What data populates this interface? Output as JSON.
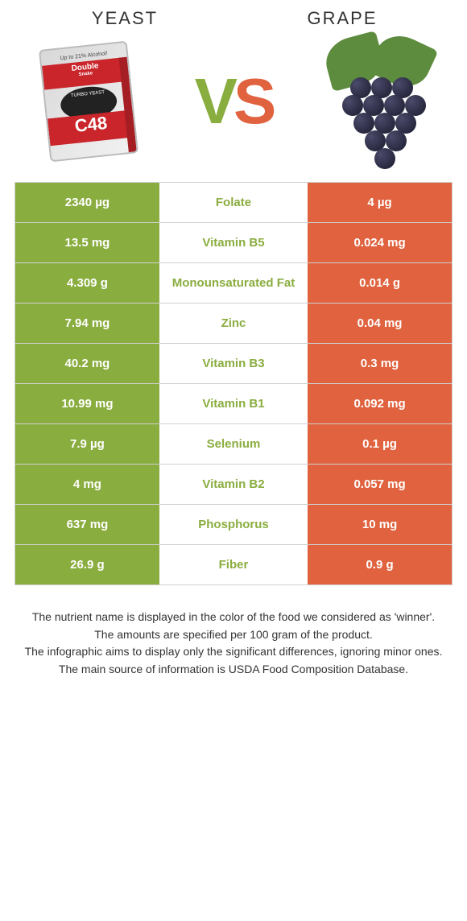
{
  "header": {
    "left_title": "YEAST",
    "right_title": "GRAPE",
    "vs_v": "V",
    "vs_s": "S"
  },
  "colors": {
    "left": "#8aad3f",
    "right": "#e0623e",
    "row_border": "#d0d0d0",
    "mid_bg": "#ffffff"
  },
  "yeast_packet": {
    "top_text": "Up to 21% Alcohol!",
    "brand1": "Double",
    "brand2": "Snake",
    "mid_text": "TURBO YEAST",
    "code": "C48"
  },
  "table": {
    "rows": [
      {
        "left": "2340 µg",
        "mid": "Folate",
        "right": "4 µg",
        "winner": "left"
      },
      {
        "left": "13.5 mg",
        "mid": "Vitamin B5",
        "right": "0.024 mg",
        "winner": "left"
      },
      {
        "left": "4.309 g",
        "mid": "Monounsaturated Fat",
        "right": "0.014 g",
        "winner": "left"
      },
      {
        "left": "7.94 mg",
        "mid": "Zinc",
        "right": "0.04 mg",
        "winner": "left"
      },
      {
        "left": "40.2 mg",
        "mid": "Vitamin B3",
        "right": "0.3 mg",
        "winner": "left"
      },
      {
        "left": "10.99 mg",
        "mid": "Vitamin B1",
        "right": "0.092 mg",
        "winner": "left"
      },
      {
        "left": "7.9 µg",
        "mid": "Selenium",
        "right": "0.1 µg",
        "winner": "left"
      },
      {
        "left": "4 mg",
        "mid": "Vitamin B2",
        "right": "0.057 mg",
        "winner": "left"
      },
      {
        "left": "637 mg",
        "mid": "Phosphorus",
        "right": "10 mg",
        "winner": "left"
      },
      {
        "left": "26.9 g",
        "mid": "Fiber",
        "right": "0.9 g",
        "winner": "left"
      }
    ]
  },
  "footnotes": [
    "The nutrient name is displayed in the color of the food we considered as 'winner'.",
    "The amounts are specified per 100 gram of the product.",
    "The infographic aims to display only the significant differences, ignoring minor ones.",
    "The main source of information is USDA Food Composition Database."
  ]
}
